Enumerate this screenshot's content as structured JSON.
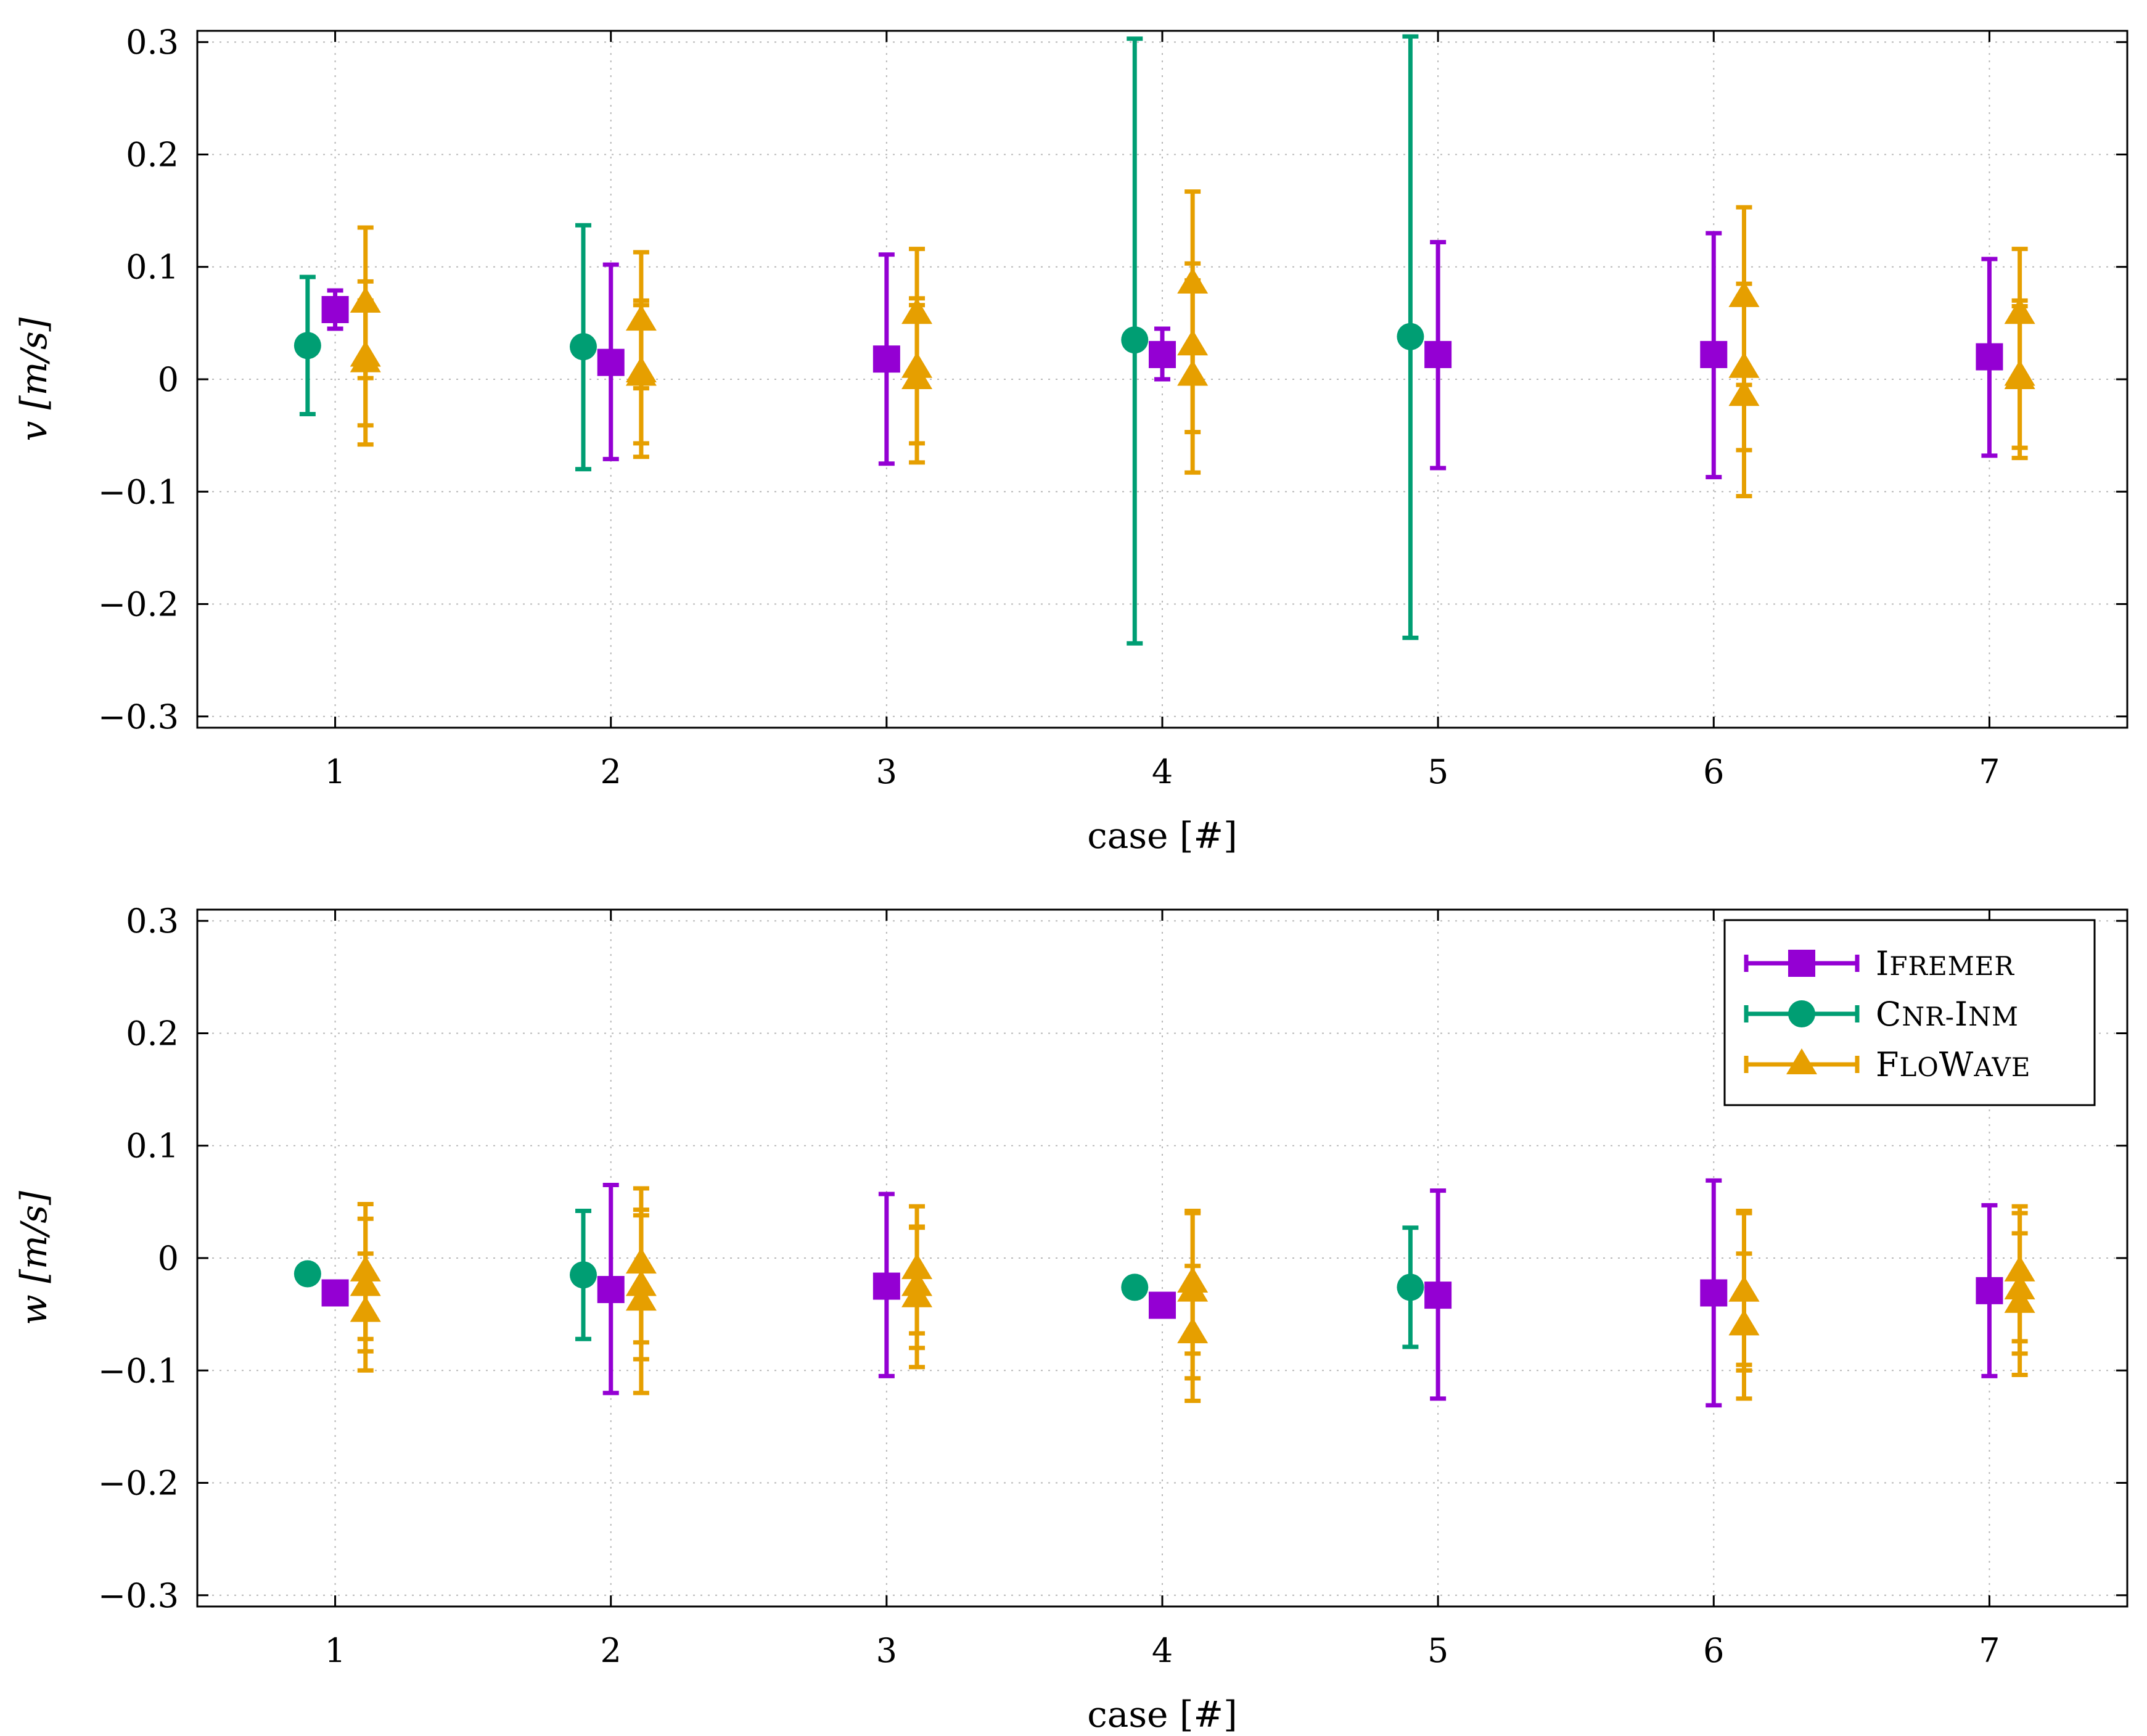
{
  "chart_data": [
    {
      "type": "errorbar",
      "title": "",
      "xlabel": "case [#]",
      "ylabel_var": "v",
      "ylabel_unit": "[m/s]",
      "xlim": [
        0.5,
        7.5
      ],
      "ylim": [
        -0.31,
        0.31
      ],
      "x_ticks": [
        "1",
        "2",
        "3",
        "4",
        "5",
        "6",
        "7"
      ],
      "y_ticks": [
        0.3,
        0.2,
        0.1,
        0,
        -0.1,
        -0.2,
        -0.3
      ],
      "y_tick_labels": [
        "0.3",
        "0.2",
        "0.1",
        "0",
        "−0.1",
        "−0.2",
        "−0.3"
      ],
      "grid": true,
      "legend": null,
      "series": [
        {
          "name": "Ifremer",
          "color": "#9400d3",
          "marker": "square",
          "x_offset": 0,
          "points": [
            {
              "x": 1,
              "y": 0.062,
              "lo": 0.045,
              "hi": 0.079
            },
            {
              "x": 2,
              "y": 0.015,
              "lo": -0.071,
              "hi": 0.102
            },
            {
              "x": 3,
              "y": 0.018,
              "lo": -0.075,
              "hi": 0.111
            },
            {
              "x": 4,
              "y": 0.022,
              "lo": 0.0,
              "hi": 0.045
            },
            {
              "x": 5,
              "y": 0.022,
              "lo": -0.079,
              "hi": 0.122
            },
            {
              "x": 6,
              "y": 0.022,
              "lo": -0.087,
              "hi": 0.13
            },
            {
              "x": 7,
              "y": 0.02,
              "lo": -0.068,
              "hi": 0.107
            }
          ]
        },
        {
          "name": "Cnr-Inm",
          "color": "#009e73",
          "marker": "circle",
          "x_offset": -0.1,
          "points": [
            {
              "x": 1,
              "y": 0.03,
              "lo": -0.031,
              "hi": 0.091
            },
            {
              "x": 2,
              "y": 0.029,
              "lo": -0.08,
              "hi": 0.137
            },
            {
              "x": 4,
              "y": 0.035,
              "lo": -0.235,
              "hi": 0.303
            },
            {
              "x": 5,
              "y": 0.038,
              "lo": -0.23,
              "hi": 0.305
            }
          ]
        },
        {
          "name": "FloWave",
          "color": "#e69f00",
          "marker": "triangle",
          "x_offset": 0.11,
          "points": [
            {
              "x": 1,
              "y": 0.068,
              "lo": 0.001,
              "hi": 0.135
            },
            {
              "x": 1,
              "y": 0.02,
              "lo": -0.058,
              "hi": 0.087
            },
            {
              "x": 1,
              "y": 0.015,
              "lo": -0.041,
              "hi": 0.07
            },
            {
              "x": 2,
              "y": 0.052,
              "lo": -0.008,
              "hi": 0.113
            },
            {
              "x": 2,
              "y": 0.006,
              "lo": -0.057,
              "hi": 0.07
            },
            {
              "x": 2,
              "y": 0.003,
              "lo": -0.069,
              "hi": 0.066
            },
            {
              "x": 3,
              "y": 0.058,
              "lo": 0.0,
              "hi": 0.116
            },
            {
              "x": 3,
              "y": 0.01,
              "lo": -0.057,
              "hi": 0.072
            },
            {
              "x": 3,
              "y": 0.0,
              "lo": -0.074,
              "hi": 0.066
            },
            {
              "x": 4,
              "y": 0.085,
              "lo": 0.001,
              "hi": 0.167
            },
            {
              "x": 4,
              "y": 0.03,
              "lo": -0.047,
              "hi": 0.103
            },
            {
              "x": 4,
              "y": 0.003,
              "lo": -0.083,
              "hi": 0.088
            },
            {
              "x": 6,
              "y": 0.073,
              "lo": -0.005,
              "hi": 0.153
            },
            {
              "x": 6,
              "y": 0.01,
              "lo": -0.063,
              "hi": 0.085
            },
            {
              "x": 6,
              "y": -0.015,
              "lo": -0.104,
              "hi": 0.074
            },
            {
              "x": 7,
              "y": 0.058,
              "lo": 0.0,
              "hi": 0.116
            },
            {
              "x": 7,
              "y": 0.003,
              "lo": -0.061,
              "hi": 0.065
            },
            {
              "x": 7,
              "y": 0.0,
              "lo": -0.07,
              "hi": 0.07
            }
          ]
        }
      ]
    },
    {
      "type": "errorbar",
      "title": "",
      "xlabel": "case [#]",
      "ylabel_var": "w",
      "ylabel_unit": "[m/s]",
      "xlim": [
        0.5,
        7.5
      ],
      "ylim": [
        -0.31,
        0.31
      ],
      "x_ticks": [
        "1",
        "2",
        "3",
        "4",
        "5",
        "6",
        "7"
      ],
      "y_ticks": [
        0.3,
        0.2,
        0.1,
        0,
        -0.1,
        -0.2,
        -0.3
      ],
      "y_tick_labels": [
        "0.3",
        "0.2",
        "0.1",
        "0",
        "−0.1",
        "−0.2",
        "−0.3"
      ],
      "grid": true,
      "legend": {
        "placement": "top-right",
        "entries": [
          {
            "series": 0,
            "label": "Ifremer",
            "label_first": "I",
            "label_rest": "FREMER"
          },
          {
            "series": 1,
            "label": "Cnr-Inm",
            "label_first": "C",
            "label_rest": "NR-",
            "label_first2": "I",
            "label_rest2": "NM"
          },
          {
            "series": 2,
            "label": "FloWave",
            "label_first": "F",
            "label_rest": "LO",
            "label_first2": "W",
            "label_rest2": "AVE"
          }
        ]
      },
      "series": [
        {
          "name": "Ifremer",
          "color": "#9400d3",
          "marker": "square",
          "x_offset": 0,
          "points": [
            {
              "x": 1,
              "y": -0.031,
              "lo": -0.031,
              "hi": -0.031
            },
            {
              "x": 2,
              "y": -0.028,
              "lo": -0.12,
              "hi": 0.065
            },
            {
              "x": 3,
              "y": -0.025,
              "lo": -0.105,
              "hi": 0.057
            },
            {
              "x": 4,
              "y": -0.042,
              "lo": -0.042,
              "hi": -0.042
            },
            {
              "x": 5,
              "y": -0.033,
              "lo": -0.125,
              "hi": 0.06
            },
            {
              "x": 6,
              "y": -0.031,
              "lo": -0.131,
              "hi": 0.069
            },
            {
              "x": 7,
              "y": -0.029,
              "lo": -0.105,
              "hi": 0.047
            }
          ]
        },
        {
          "name": "Cnr-Inm",
          "color": "#009e73",
          "marker": "circle",
          "x_offset": -0.1,
          "points": [
            {
              "x": 1,
              "y": -0.014,
              "lo": -0.014,
              "hi": -0.014
            },
            {
              "x": 2,
              "y": -0.015,
              "lo": -0.072,
              "hi": 0.042
            },
            {
              "x": 4,
              "y": -0.026,
              "lo": -0.026,
              "hi": -0.026
            },
            {
              "x": 5,
              "y": -0.026,
              "lo": -0.079,
              "hi": 0.027
            }
          ]
        },
        {
          "name": "FloWave",
          "color": "#e69f00",
          "marker": "triangle",
          "x_offset": 0.11,
          "points": [
            {
              "x": 1,
              "y": -0.012,
              "lo": -0.072,
              "hi": 0.048
            },
            {
              "x": 1,
              "y": -0.048,
              "lo": -0.1,
              "hi": 0.004
            },
            {
              "x": 1,
              "y": -0.025,
              "lo": -0.083,
              "hi": 0.035
            },
            {
              "x": 2,
              "y": -0.005,
              "lo": -0.075,
              "hi": 0.062
            },
            {
              "x": 2,
              "y": -0.038,
              "lo": -0.12,
              "hi": 0.043
            },
            {
              "x": 2,
              "y": -0.025,
              "lo": -0.09,
              "hi": 0.038
            },
            {
              "x": 3,
              "y": -0.01,
              "lo": -0.067,
              "hi": 0.046
            },
            {
              "x": 3,
              "y": -0.035,
              "lo": -0.097,
              "hi": 0.027
            },
            {
              "x": 3,
              "y": -0.025,
              "lo": -0.08,
              "hi": 0.028
            },
            {
              "x": 4,
              "y": -0.022,
              "lo": -0.085,
              "hi": 0.042
            },
            {
              "x": 4,
              "y": -0.067,
              "lo": -0.127,
              "hi": -0.007
            },
            {
              "x": 4,
              "y": -0.03,
              "lo": -0.107,
              "hi": 0.04
            },
            {
              "x": 6,
              "y": -0.03,
              "lo": -0.1,
              "hi": 0.042
            },
            {
              "x": 6,
              "y": -0.06,
              "lo": -0.125,
              "hi": 0.004
            },
            {
              "x": 6,
              "y": -0.03,
              "lo": -0.095,
              "hi": 0.04
            },
            {
              "x": 7,
              "y": -0.012,
              "lo": -0.074,
              "hi": 0.046
            },
            {
              "x": 7,
              "y": -0.04,
              "lo": -0.104,
              "hi": 0.022
            },
            {
              "x": 7,
              "y": -0.028,
              "lo": -0.085,
              "hi": 0.04
            }
          ]
        }
      ]
    }
  ]
}
